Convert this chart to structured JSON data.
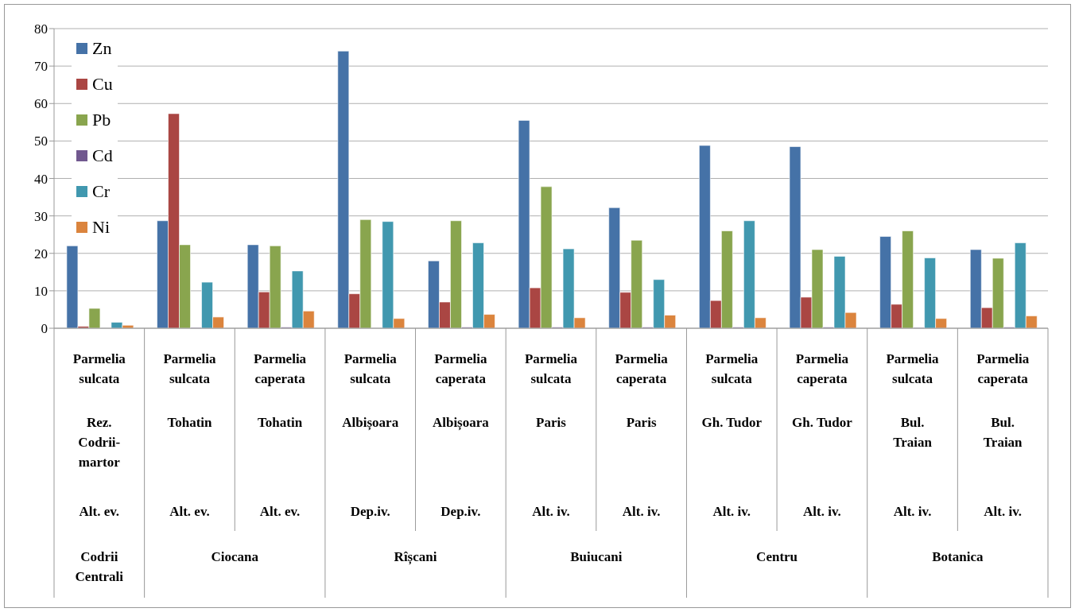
{
  "chart_data": {
    "type": "bar",
    "categories": [
      "Parmelia\nsulcata\n\nRez.\nCodrii-\nmartor\n\nAlt. ev.",
      "Parmelia\nsulcata\n\nTohatin\n\nAlt. ev.",
      "Parmelia\ncaperata\n\nTohatin\n\nAlt. ev.",
      "Parmelia\nsulcata\n\nAlbișoara\n\nDep.iv.",
      "Parmelia\ncaperata\n\nAlbișoara\n\nDep.iv.",
      "Parmelia\nsulcata\n\nParis\n\nAlt. iv.",
      "Parmelia\ncaperata\n\nParis\n\nAlt. iv.",
      "Parmelia\nsulcata\n\nGh. Tudor\n\nAlt. iv.",
      "Parmelia\ncaperata\n\nGh. Tudor\n\nAlt. iv.",
      "Parmelia\nsulcata\n\nBul.\nTraian\n\nAlt. iv.",
      "Parmelia\ncaperata\n\nBul.\nTraian\n\nAlt. iv."
    ],
    "series": [
      {
        "name": "Zn",
        "color": "#4572a7",
        "values": [
          22,
          28.7,
          22.3,
          74,
          18,
          55.5,
          32.2,
          48.8,
          48.5,
          24.5,
          21
        ]
      },
      {
        "name": "Cu",
        "color": "#aa4643",
        "values": [
          0.5,
          57.3,
          9.7,
          9.2,
          7,
          10.8,
          9.6,
          7.4,
          8.3,
          6.4,
          5.5
        ]
      },
      {
        "name": "Pb",
        "color": "#89a54e",
        "values": [
          5.3,
          22.3,
          22,
          29,
          28.7,
          37.8,
          23.5,
          26,
          21,
          26,
          18.7
        ]
      },
      {
        "name": "Cd",
        "color": "#71588f",
        "values": [
          0,
          0.2,
          0.3,
          0,
          0.3,
          0.3,
          0.3,
          0.3,
          0.3,
          0.2,
          0.3
        ]
      },
      {
        "name": "Cr",
        "color": "#4198af",
        "values": [
          1.6,
          12.3,
          15.3,
          28.5,
          22.8,
          21.2,
          13,
          28.7,
          19.2,
          18.8,
          22.8
        ]
      },
      {
        "name": "Ni",
        "color": "#db843d",
        "values": [
          0.8,
          3,
          4.6,
          2.6,
          3.7,
          2.8,
          3.5,
          2.8,
          4.2,
          2.6,
          3.3
        ]
      }
    ],
    "annotations": [
      "Codrii\nCentrali",
      "Ciocana",
      "Rîșcani",
      "Buiucani",
      "Centru",
      "Botanica"
    ],
    "ylim": [
      0,
      80
    ],
    "yticks": [
      0,
      10,
      20,
      30,
      40,
      50,
      60,
      70,
      80
    ],
    "grid": "y",
    "legend": "top left"
  }
}
